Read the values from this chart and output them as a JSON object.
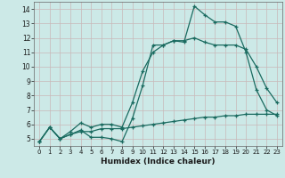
{
  "xlabel": "Humidex (Indice chaleur)",
  "xlim": [
    -0.5,
    23.5
  ],
  "ylim": [
    4.5,
    14.5
  ],
  "xticks": [
    0,
    1,
    2,
    3,
    4,
    5,
    6,
    7,
    8,
    9,
    10,
    11,
    12,
    13,
    14,
    15,
    16,
    17,
    18,
    19,
    20,
    21,
    22,
    23
  ],
  "yticks": [
    5,
    6,
    7,
    8,
    9,
    10,
    11,
    12,
    13,
    14
  ],
  "bg_color": "#cce9e7",
  "grid_color": "#b8d8d5",
  "line_color": "#1a6b60",
  "line1_x": [
    0,
    1,
    2,
    3,
    4,
    5,
    6,
    7,
    8,
    9,
    10,
    11,
    12,
    13,
    14,
    15,
    16,
    17,
    18,
    19,
    20,
    21,
    22,
    23
  ],
  "line1_y": [
    4.8,
    5.8,
    5.0,
    5.3,
    5.6,
    5.1,
    5.1,
    5.0,
    4.8,
    6.4,
    8.7,
    11.5,
    11.5,
    11.8,
    11.7,
    14.2,
    13.6,
    13.1,
    13.1,
    12.8,
    11.0,
    8.4,
    7.0,
    6.6
  ],
  "line2_x": [
    0,
    1,
    2,
    3,
    4,
    5,
    6,
    7,
    8,
    9,
    10,
    11,
    12,
    13,
    14,
    15,
    16,
    17,
    18,
    19,
    20,
    21,
    22,
    23
  ],
  "line2_y": [
    4.8,
    5.8,
    5.0,
    5.5,
    6.1,
    5.8,
    6.0,
    6.0,
    5.8,
    7.5,
    9.7,
    11.0,
    11.5,
    11.8,
    11.8,
    12.0,
    11.7,
    11.5,
    11.5,
    11.5,
    11.2,
    10.0,
    8.5,
    7.5
  ],
  "line3_x": [
    0,
    1,
    2,
    3,
    4,
    5,
    6,
    7,
    8,
    9,
    10,
    11,
    12,
    13,
    14,
    15,
    16,
    17,
    18,
    19,
    20,
    21,
    22,
    23
  ],
  "line3_y": [
    4.8,
    5.8,
    5.0,
    5.3,
    5.5,
    5.5,
    5.7,
    5.7,
    5.7,
    5.8,
    5.9,
    6.0,
    6.1,
    6.2,
    6.3,
    6.4,
    6.5,
    6.5,
    6.6,
    6.6,
    6.7,
    6.7,
    6.7,
    6.7
  ]
}
